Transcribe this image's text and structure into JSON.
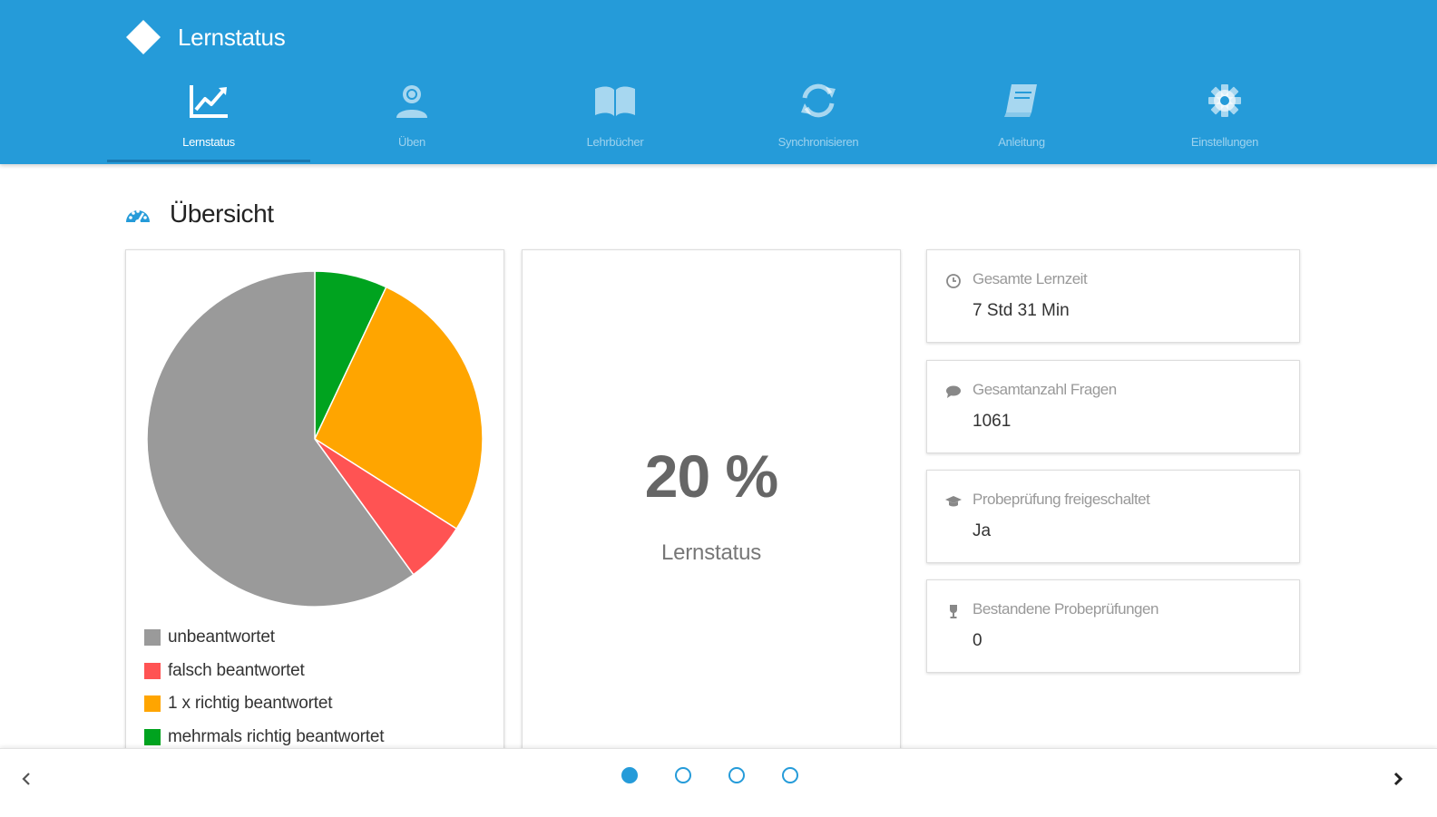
{
  "header": {
    "title": "Lernstatus",
    "logo_icon": "diamond-logo-icon",
    "accent_color": "#259bd9"
  },
  "tabs": [
    {
      "label": "Lernstatus",
      "icon": "chart-line-icon",
      "active": true
    },
    {
      "label": "Üben",
      "icon": "user-learn-icon",
      "active": false
    },
    {
      "label": "Lehrbücher",
      "icon": "book-open-icon",
      "active": false
    },
    {
      "label": "Synchronisieren",
      "icon": "sync-icon",
      "active": false
    },
    {
      "label": "Anleitung",
      "icon": "manual-book-icon",
      "active": false
    },
    {
      "label": "Einstellungen",
      "icon": "gear-icon",
      "active": false
    }
  ],
  "section": {
    "title": "Übersicht",
    "icon": "dashboard-icon"
  },
  "chart_data": {
    "type": "pie",
    "slices": [
      {
        "label": "mehrmals richtig beantwortet",
        "value": 7,
        "color": "#00a31f"
      },
      {
        "label": "1 x richtig beantwortet",
        "value": 27,
        "color": "#ffa500"
      },
      {
        "label": "falsch beantwortet",
        "value": 6,
        "color": "#ff5353"
      },
      {
        "label": "unbeantwortet",
        "value": 60,
        "color": "#9a9a9a"
      }
    ],
    "legend": [
      {
        "label": "unbeantwortet",
        "color": "#9a9a9a"
      },
      {
        "label": "falsch beantwortet",
        "color": "#ff5353"
      },
      {
        "label": "1 x richtig beantwortet",
        "color": "#ffa500"
      },
      {
        "label": "mehrmals richtig beantwortet",
        "color": "#00a31f"
      }
    ],
    "legend_placement": "bottom"
  },
  "status": {
    "value": "20 %",
    "label": "Lernstatus"
  },
  "info_cards": [
    {
      "icon": "clock-icon",
      "label": "Gesamte Lernzeit",
      "value": "7 Std 31 Min"
    },
    {
      "icon": "comment-icon",
      "label": "Gesamtanzahl Fragen",
      "value": "1061"
    },
    {
      "icon": "graduation-cap-icon",
      "label": "Probeprüfung freigeschaltet",
      "value": "Ja"
    },
    {
      "icon": "trophy-icon",
      "label": "Bestandene Probeprüfungen",
      "value": "0"
    }
  ],
  "pager": {
    "total": 4,
    "active_index": 0,
    "prev_icon": "chevron-left-icon",
    "next_icon": "chevron-right-icon"
  }
}
